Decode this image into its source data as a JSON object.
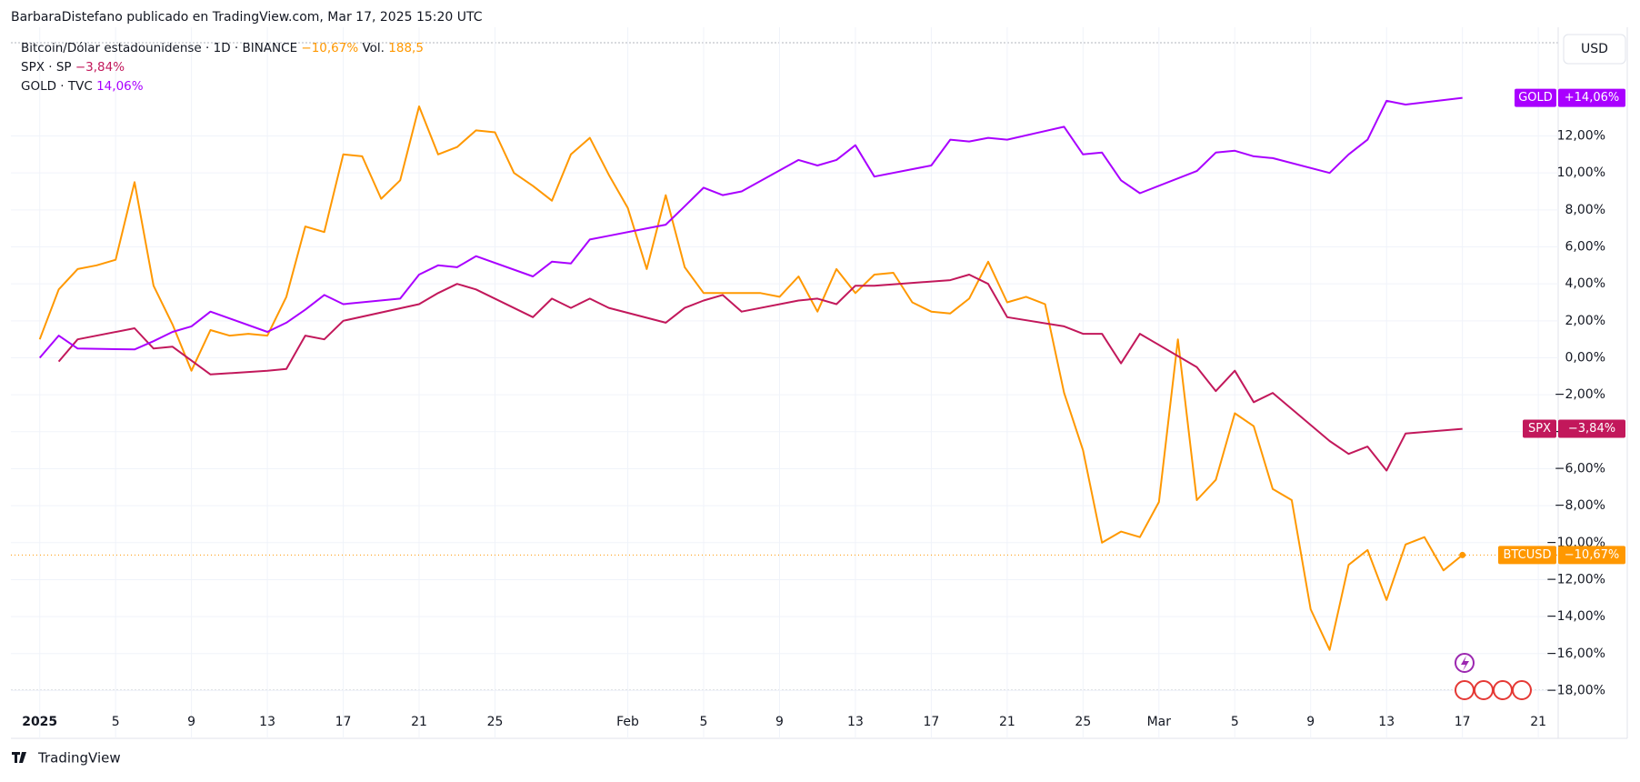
{
  "header": {
    "byline": "BarbaraDistefano publicado en TradingView.com, Mar 17, 2025 15:20 UTC",
    "currency": "USD",
    "logo": "TradingView"
  },
  "chart_data": {
    "type": "line",
    "xlim": [
      "2025-01-01",
      "2025-03-22"
    ],
    "ylim": [
      -19.1,
      17.5
    ],
    "grid": true,
    "xticks": [
      {
        "value": "2025-01-01",
        "label": "2025"
      },
      {
        "value": "2025-01-05",
        "label": "5"
      },
      {
        "value": "2025-01-09",
        "label": "9"
      },
      {
        "value": "2025-01-13",
        "label": "13"
      },
      {
        "value": "2025-01-17",
        "label": "17"
      },
      {
        "value": "2025-01-21",
        "label": "21"
      },
      {
        "value": "2025-01-25",
        "label": "25"
      },
      {
        "value": "2025-02-01",
        "label": "Feb"
      },
      {
        "value": "2025-02-05",
        "label": "5"
      },
      {
        "value": "2025-02-09",
        "label": "9"
      },
      {
        "value": "2025-02-13",
        "label": "13"
      },
      {
        "value": "2025-02-17",
        "label": "17"
      },
      {
        "value": "2025-02-21",
        "label": "21"
      },
      {
        "value": "2025-02-25",
        "label": "25"
      },
      {
        "value": "2025-03-01",
        "label": "Mar"
      },
      {
        "value": "2025-03-05",
        "label": "5"
      },
      {
        "value": "2025-03-09",
        "label": "9"
      },
      {
        "value": "2025-03-13",
        "label": "13"
      },
      {
        "value": "2025-03-17",
        "label": "17"
      },
      {
        "value": "2025-03-21",
        "label": "21"
      }
    ],
    "yticks": [
      {
        "value": 12,
        "label": "12,00%"
      },
      {
        "value": 10,
        "label": "10,00%"
      },
      {
        "value": 8,
        "label": "8,00%"
      },
      {
        "value": 6,
        "label": "6,00%"
      },
      {
        "value": 4,
        "label": "4,00%"
      },
      {
        "value": 2,
        "label": "2,00%"
      },
      {
        "value": 0,
        "label": "0,00%"
      },
      {
        "value": -2,
        "label": "−2,00%"
      },
      {
        "value": -4,
        "label": "−4,00%"
      },
      {
        "value": -6,
        "label": "−6,00%"
      },
      {
        "value": -8,
        "label": "−8,00%"
      },
      {
        "value": -10,
        "label": "−10,00%"
      },
      {
        "value": -12,
        "label": "−12,00%"
      },
      {
        "value": -14,
        "label": "−14,00%"
      },
      {
        "value": -16,
        "label": "−16,00%"
      },
      {
        "value": -18,
        "label": "−18,00%"
      }
    ],
    "series": [
      {
        "name": "BTCUSD",
        "legend": "Bitcoin/Dólar estadounidense · 1D · BINANCE",
        "change_label": "−10,67%",
        "tag_label": "−10,67%",
        "volume_label": "Vol.",
        "volume": "188,5",
        "color": "#ff9800",
        "x": [
          "2025-01-01",
          "2025-01-02",
          "2025-01-03",
          "2025-01-04",
          "2025-01-05",
          "2025-01-06",
          "2025-01-07",
          "2025-01-08",
          "2025-01-09",
          "2025-01-10",
          "2025-01-11",
          "2025-01-12",
          "2025-01-13",
          "2025-01-14",
          "2025-01-15",
          "2025-01-16",
          "2025-01-17",
          "2025-01-18",
          "2025-01-19",
          "2025-01-20",
          "2025-01-21",
          "2025-01-22",
          "2025-01-23",
          "2025-01-24",
          "2025-01-25",
          "2025-01-26",
          "2025-01-27",
          "2025-01-28",
          "2025-01-29",
          "2025-01-30",
          "2025-01-31",
          "2025-02-01",
          "2025-02-02",
          "2025-02-03",
          "2025-02-04",
          "2025-02-05",
          "2025-02-06",
          "2025-02-07",
          "2025-02-08",
          "2025-02-09",
          "2025-02-10",
          "2025-02-11",
          "2025-02-12",
          "2025-02-13",
          "2025-02-14",
          "2025-02-15",
          "2025-02-16",
          "2025-02-17",
          "2025-02-18",
          "2025-02-19",
          "2025-02-20",
          "2025-02-21",
          "2025-02-22",
          "2025-02-23",
          "2025-02-24",
          "2025-02-25",
          "2025-02-26",
          "2025-02-27",
          "2025-02-28",
          "2025-03-01",
          "2025-03-02",
          "2025-03-03",
          "2025-03-04",
          "2025-03-05",
          "2025-03-06",
          "2025-03-07",
          "2025-03-08",
          "2025-03-09",
          "2025-03-10",
          "2025-03-11",
          "2025-03-12",
          "2025-03-13",
          "2025-03-14",
          "2025-03-15",
          "2025-03-16",
          "2025-03-17"
        ],
        "values": [
          1.0,
          3.7,
          4.8,
          5.0,
          5.3,
          9.5,
          3.9,
          1.8,
          -0.7,
          1.5,
          1.2,
          1.3,
          1.2,
          3.3,
          7.1,
          6.8,
          11.0,
          10.9,
          8.6,
          9.6,
          13.6,
          11.0,
          11.4,
          12.3,
          12.2,
          10.0,
          9.3,
          8.5,
          11.0,
          11.9,
          9.9,
          8.1,
          4.8,
          8.8,
          4.9,
          3.5,
          3.5,
          3.5,
          3.5,
          3.3,
          4.4,
          2.5,
          4.8,
          3.5,
          4.5,
          4.6,
          3.0,
          2.5,
          2.4,
          3.2,
          5.2,
          3.0,
          3.3,
          2.9,
          -1.9,
          -5.0,
          -10.0,
          -9.4,
          -9.7,
          -7.8,
          1.0,
          -7.7,
          -6.6,
          -3.0,
          -3.7,
          -7.1,
          -7.7,
          -13.6,
          -15.8,
          -11.2,
          -10.4,
          -13.1,
          -10.1,
          -9.7,
          -11.5,
          -10.67
        ]
      },
      {
        "name": "SPX",
        "legend": "SPX · SP",
        "change_label": "−3,84%",
        "tag_label": "−3,84%",
        "color": "#c2185b",
        "x": [
          "2025-01-02",
          "2025-01-03",
          "2025-01-06",
          "2025-01-07",
          "2025-01-08",
          "2025-01-10",
          "2025-01-13",
          "2025-01-14",
          "2025-01-15",
          "2025-01-16",
          "2025-01-17",
          "2025-01-21",
          "2025-01-22",
          "2025-01-23",
          "2025-01-24",
          "2025-01-27",
          "2025-01-28",
          "2025-01-29",
          "2025-01-30",
          "2025-01-31",
          "2025-02-03",
          "2025-02-04",
          "2025-02-05",
          "2025-02-06",
          "2025-02-07",
          "2025-02-10",
          "2025-02-11",
          "2025-02-12",
          "2025-02-13",
          "2025-02-14",
          "2025-02-18",
          "2025-02-19",
          "2025-02-20",
          "2025-02-21",
          "2025-02-24",
          "2025-02-25",
          "2025-02-26",
          "2025-02-27",
          "2025-02-28",
          "2025-03-03",
          "2025-03-04",
          "2025-03-05",
          "2025-03-06",
          "2025-03-07",
          "2025-03-10",
          "2025-03-11",
          "2025-03-12",
          "2025-03-13",
          "2025-03-14",
          "2025-03-17"
        ],
        "values": [
          -0.2,
          1.0,
          1.6,
          0.5,
          0.6,
          -0.9,
          -0.7,
          -0.6,
          1.2,
          1.0,
          2.0,
          2.9,
          3.5,
          4.0,
          3.7,
          2.2,
          3.2,
          2.7,
          3.2,
          2.7,
          1.9,
          2.7,
          3.1,
          3.4,
          2.5,
          3.1,
          3.2,
          2.9,
          3.9,
          3.9,
          4.2,
          4.5,
          4.0,
          2.2,
          1.7,
          1.3,
          1.3,
          -0.3,
          1.3,
          -0.5,
          -1.8,
          -0.7,
          -2.4,
          -1.9,
          -4.5,
          -5.2,
          -4.8,
          -6.1,
          -4.1,
          -3.84
        ]
      },
      {
        "name": "GOLD",
        "legend": "GOLD · TVC",
        "change_label": "14,06%",
        "tag_label": "+14,06%",
        "color": "#a900ff",
        "x": [
          "2025-01-01",
          "2025-01-02",
          "2025-01-03",
          "2025-01-06",
          "2025-01-07",
          "2025-01-08",
          "2025-01-09",
          "2025-01-10",
          "2025-01-13",
          "2025-01-14",
          "2025-01-15",
          "2025-01-16",
          "2025-01-17",
          "2025-01-20",
          "2025-01-21",
          "2025-01-22",
          "2025-01-23",
          "2025-01-24",
          "2025-01-27",
          "2025-01-28",
          "2025-01-29",
          "2025-01-30",
          "2025-01-31",
          "2025-02-03",
          "2025-02-04",
          "2025-02-05",
          "2025-02-06",
          "2025-02-07",
          "2025-02-10",
          "2025-02-11",
          "2025-02-12",
          "2025-02-13",
          "2025-02-14",
          "2025-02-17",
          "2025-02-18",
          "2025-02-19",
          "2025-02-20",
          "2025-02-21",
          "2025-02-24",
          "2025-02-25",
          "2025-02-26",
          "2025-02-27",
          "2025-02-28",
          "2025-03-03",
          "2025-03-04",
          "2025-03-05",
          "2025-03-06",
          "2025-03-07",
          "2025-03-10",
          "2025-03-11",
          "2025-03-12",
          "2025-03-13",
          "2025-03-14",
          "2025-03-17"
        ],
        "values": [
          0,
          1.2,
          0.5,
          0.45,
          0.9,
          1.4,
          1.7,
          2.5,
          1.4,
          1.9,
          2.6,
          3.4,
          2.9,
          3.2,
          4.5,
          5.0,
          4.9,
          5.5,
          4.4,
          5.2,
          5.1,
          6.4,
          6.6,
          7.2,
          8.2,
          9.2,
          8.8,
          9.0,
          10.7,
          10.4,
          10.7,
          11.5,
          9.8,
          10.4,
          11.8,
          11.7,
          11.9,
          11.8,
          12.5,
          11.0,
          11.1,
          9.6,
          8.9,
          10.1,
          11.1,
          11.2,
          10.9,
          10.8,
          10.0,
          11.0,
          11.8,
          13.9,
          13.7,
          14.06
        ]
      }
    ]
  }
}
